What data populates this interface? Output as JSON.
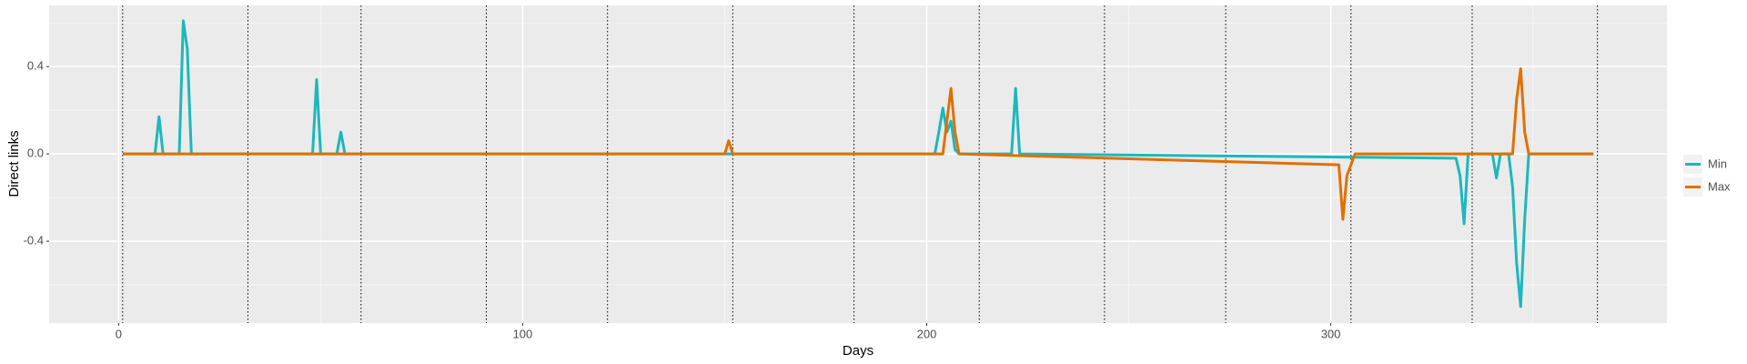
{
  "chart_data": {
    "type": "line",
    "x_label": "Days",
    "y_label": "Direct links",
    "xlim": [
      -17.2,
      383.2
    ],
    "ylim": [
      -0.775,
      0.68
    ],
    "xticks": [
      0,
      100,
      200,
      300
    ],
    "yticks": [
      -0.4,
      {
        "value": 0,
        "label": "0.0"
      },
      0.4
    ],
    "minor_xticks": [
      50,
      150,
      250,
      350
    ],
    "minor_yticks": [
      -0.6,
      -0.2,
      0.2,
      0.6
    ],
    "grid": true,
    "vlines": [
      1,
      32,
      60,
      91,
      121,
      152,
      182,
      213,
      244,
      274,
      305,
      335,
      366
    ],
    "legend": "right",
    "series": [
      {
        "name": "Min",
        "color": "#1BB8BC",
        "x": [
          1,
          9,
          10,
          11,
          15,
          16,
          17,
          18,
          48,
          49,
          50,
          54,
          55,
          56,
          202,
          203,
          204,
          205,
          206,
          207,
          208,
          221,
          222,
          223,
          331,
          332,
          333,
          334,
          340,
          341,
          342,
          344,
          345,
          346,
          347,
          348,
          349,
          365
        ],
        "values": [
          0,
          0,
          0.17,
          0,
          0,
          0.61,
          0.48,
          0,
          0,
          0.34,
          0,
          0,
          0.1,
          0,
          0,
          0.1,
          0.21,
          0.1,
          0.15,
          0.02,
          0,
          0,
          0.3,
          0,
          -0.02,
          -0.1,
          -0.32,
          0,
          0,
          -0.11,
          0,
          0,
          -0.15,
          -0.5,
          -0.7,
          -0.3,
          0,
          0
        ]
      },
      {
        "name": "Max",
        "color": "#E07000",
        "x": [
          1,
          150,
          151,
          152,
          204,
          205,
          206,
          207,
          208,
          302,
          303,
          304,
          305,
          306,
          345,
          346,
          347,
          348,
          349,
          365
        ],
        "values": [
          0,
          0,
          0.06,
          0,
          0,
          0.15,
          0.3,
          0.1,
          0,
          -0.05,
          -0.3,
          -0.1,
          -0.05,
          0,
          0,
          0.25,
          0.39,
          0.1,
          0,
          0
        ]
      }
    ]
  }
}
